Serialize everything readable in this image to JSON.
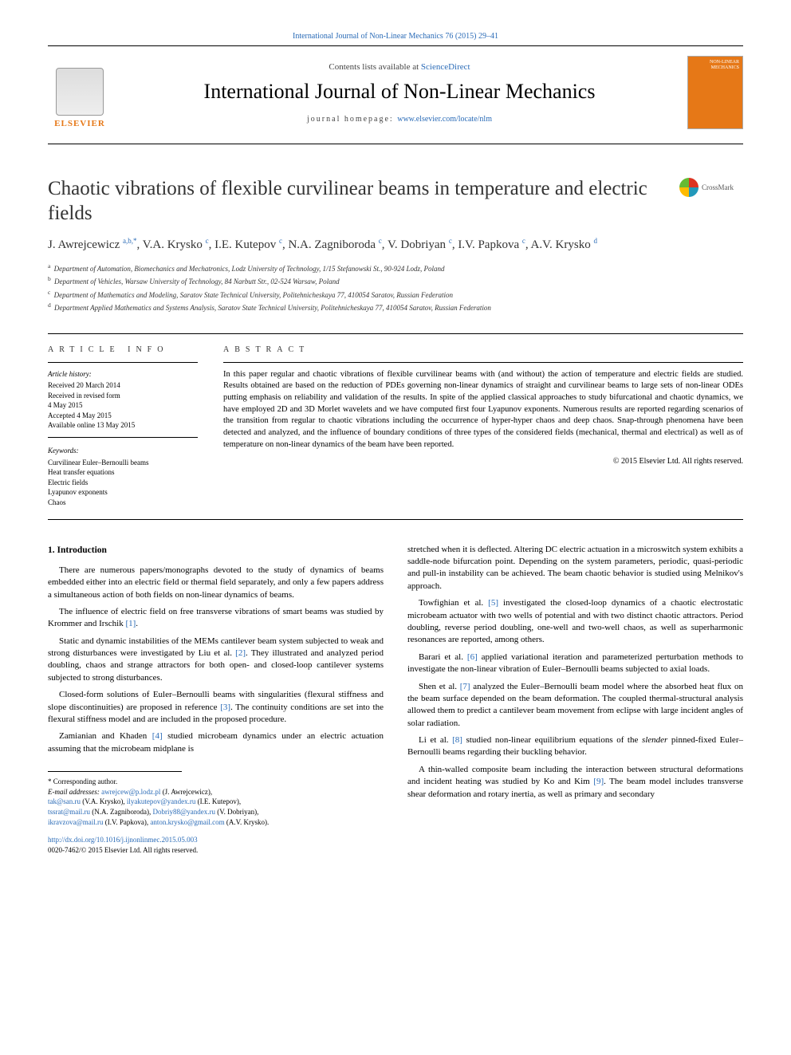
{
  "topbar": {
    "citation": "International Journal of Non-Linear Mechanics 76 (2015) 29–41"
  },
  "header": {
    "contents_prefix": "Contents lists available at ",
    "contents_link": "ScienceDirect",
    "journal": "International Journal of Non-Linear Mechanics",
    "homepage_prefix": "journal homepage: ",
    "homepage_url": "www.elsevier.com/locate/nlm",
    "elsevier": "ELSEVIER",
    "cover_label": "NON-LINEAR MECHANICS"
  },
  "crossmark": "CrossMark",
  "title": "Chaotic vibrations of flexible curvilinear beams in temperature and electric fields",
  "authors_html": "J. Awrejcewicz <sup>a,b,*</sup>, V.A. Krysko <sup>c</sup>, I.E. Kutepov <sup>c</sup>, N.A. Zagniboroda <sup>c</sup>, V. Dobriyan <sup>c</sup>, I.V. Papkova <sup>c</sup>, A.V. Krysko <sup>d</sup>",
  "affiliations": [
    {
      "sup": "a",
      "text": "Department of Automation, Biomechanics and Mechatronics, Lodz University of Technology, 1/15 Stefanowski St., 90-924 Lodz, Poland"
    },
    {
      "sup": "b",
      "text": "Department of Vehicles, Warsaw University of Technology, 84 Narbutt Str., 02-524 Warsaw, Poland"
    },
    {
      "sup": "c",
      "text": "Department of Mathematics and Modeling, Saratov State Technical University, Politehnicheskaya 77, 410054 Saratov, Russian Federation"
    },
    {
      "sup": "d",
      "text": "Department Applied Mathematics and Systems Analysis, Saratov State Technical University, Politehnicheskaya 77, 410054 Saratov, Russian Federation"
    }
  ],
  "info": {
    "heading": "ARTICLE INFO",
    "history_head": "Article history:",
    "history": "Received 20 March 2014\nReceived in revised form\n4 May 2015\nAccepted 4 May 2015\nAvailable online 13 May 2015",
    "kw_head": "Keywords:",
    "keywords": "Curvilinear Euler–Bernoulli beams\nHeat transfer equations\nElectric fields\nLyapunov exponents\nChaos"
  },
  "abstract": {
    "heading": "ABSTRACT",
    "body": "In this paper regular and chaotic vibrations of flexible curvilinear beams with (and without) the action of temperature and electric fields are studied. Results obtained are based on the reduction of PDEs governing non-linear dynamics of straight and curvilinear beams to large sets of non-linear ODEs putting emphasis on reliability and validation of the results. In spite of the applied classical approaches to study bifurcational and chaotic dynamics, we have employed 2D and 3D Morlet wavelets and we have computed first four Lyapunov exponents. Numerous results are reported regarding scenarios of the transition from regular to chaotic vibrations including the occurrence of hyper-hyper chaos and deep chaos. Snap-through phenomena have been detected and analyzed, and the influence of boundary conditions of three types of the considered fields (mechanical, thermal and electrical) as well as of temperature on non-linear dynamics of the beam have been reported.",
    "copyright": "© 2015 Elsevier Ltd. All rights reserved."
  },
  "intro": {
    "heading": "1.  Introduction",
    "paras_left": [
      "There are numerous papers/monographs devoted to the study of dynamics of beams embedded either into an electric field or thermal field separately, and only a few papers address a simultaneous action of both fields on non-linear dynamics of beams.",
      "The influence of electric field on free transverse vibrations of smart beams was studied by Krommer and Irschik [1].",
      "Static and dynamic instabilities of the MEMs cantilever beam system subjected to weak and strong disturbances were investigated by Liu et al. [2]. They illustrated and analyzed period doubling, chaos and strange attractors for both open- and closed-loop cantilever systems subjected to strong disturbances.",
      "Closed-form solutions of Euler–Bernoulli beams with singularities (flexural stiffness and slope discontinuities) are proposed in reference [3]. The continuity conditions are set into the flexural stiffness model and are included in the proposed procedure.",
      "Zamianian and Khaden [4] studied microbeam dynamics under an electric actuation assuming that the microbeam midplane is"
    ],
    "paras_right": [
      "stretched when it is deflected. Altering DC electric actuation in a microswitch system exhibits a saddle-node bifurcation point. Depending on the system parameters, periodic, quasi-periodic and pull-in instability can be achieved. The beam chaotic behavior is studied using Melnikov's approach.",
      "Towfighian et al. [5] investigated the closed-loop dynamics of a chaotic electrostatic microbeam actuator with two wells of potential and with two distinct chaotic attractors. Period doubling, reverse period doubling, one-well and two-well chaos, as well as superharmonic resonances are reported, among others.",
      "Barari et al. [6] applied variational iteration and parameterized perturbation methods to investigate the non-linear vibration of Euler–Bernoulli beams subjected to axial loads.",
      "Shen et al. [7] analyzed the Euler–Bernoulli beam model where the absorbed heat flux on the beam surface depended on the beam deformation. The coupled thermal-structural analysis allowed them to predict a cantilever beam movement from eclipse with large incident angles of solar radiation.",
      "Li et al. [8] studied non-linear equilibrium equations of the slender pinned-fixed Euler–Bernoulli beams regarding their buckling behavior.",
      "A thin-walled composite beam including the interaction between structural deformations and incident heating was studied by Ko and Kim [9]. The beam model includes transverse shear deformation and rotary inertia, as well as primary and secondary"
    ]
  },
  "footnotes": {
    "corr": "* Corresponding author.",
    "emails_label": "E-mail addresses: ",
    "emails": [
      {
        "mail": "awrejcew@p.lodz.pl",
        "who": " (J. Awrejcewicz),"
      },
      {
        "mail": "tak@san.ru",
        "who": " (V.A. Krysko), "
      },
      {
        "mail": "ilyakutepov@yandex.ru",
        "who": " (I.E. Kutepov),"
      },
      {
        "mail": "tssrat@mail.ru",
        "who": " (N.A. Zagniboroda), "
      },
      {
        "mail": "Dobriy88@yandex.ru",
        "who": " (V. Dobriyan),"
      },
      {
        "mail": "ikravzova@mail.ru",
        "who": " (I.V. Papkova), "
      },
      {
        "mail": "anton.krysko@gmail.com",
        "who": " (A.V. Krysko)."
      }
    ]
  },
  "doi": {
    "url": "http://dx.doi.org/10.1016/j.ijnonlinmec.2015.05.003",
    "issn": "0020-7462/© 2015 Elsevier Ltd. All rights reserved."
  },
  "colors": {
    "link": "#2a6bb7",
    "elsevier_orange": "#e67817",
    "text": "#000000",
    "rule": "#000000"
  },
  "refs": [
    "[1]",
    "[2]",
    "[3]",
    "[4]",
    "[5]",
    "[6]",
    "[7]",
    "[8]",
    "[9]"
  ]
}
